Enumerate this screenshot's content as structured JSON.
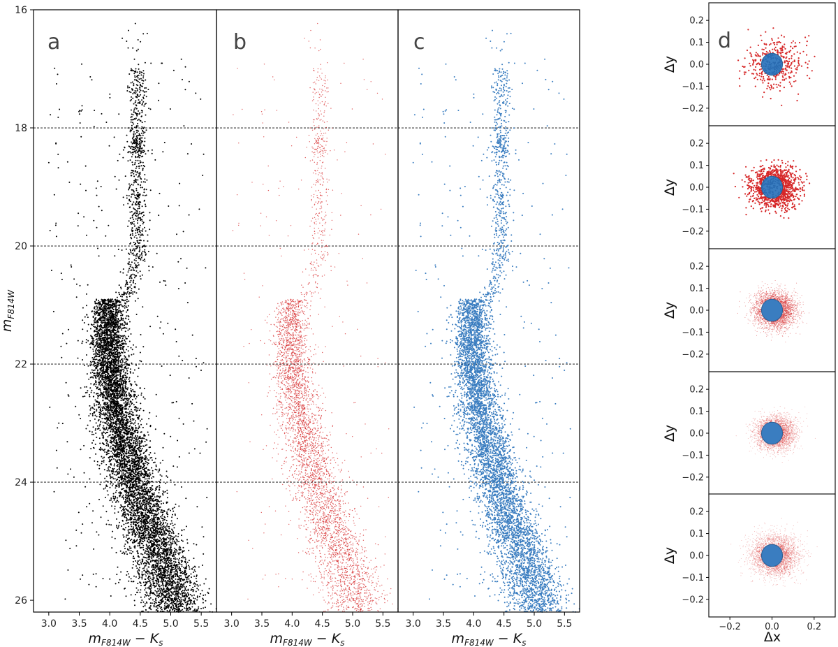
{
  "chart_data": [
    {
      "type": "scatter",
      "letter": "a",
      "xlabel": "m_F814W − K_s",
      "ylabel": "m_F814W",
      "xlim": [
        2.75,
        5.75
      ],
      "ylim": [
        26.2,
        16
      ],
      "xticks": [
        "3.0",
        "3.5",
        "4.0",
        "4.5",
        "5.0",
        "5.5"
      ],
      "yticks": [
        "16",
        "18",
        "20",
        "22",
        "24",
        "26"
      ],
      "hlines": [
        18,
        20,
        22,
        24
      ],
      "color": "#000000",
      "series": [
        {
          "region": "main_sequence",
          "points": [
            [
              3.98,
              21.2
            ],
            [
              4.0,
              21.8
            ],
            [
              4.05,
              22.4
            ],
            [
              4.15,
              23.0
            ],
            [
              4.3,
              23.6
            ],
            [
              4.45,
              24.2
            ],
            [
              4.6,
              24.8
            ],
            [
              4.8,
              25.4
            ],
            [
              5.0,
              25.9
            ]
          ],
          "width": 0.28
        },
        {
          "region": "upper_branch",
          "points": [
            [
              4.4,
              17.2
            ],
            [
              4.45,
              18.0
            ],
            [
              4.42,
              18.4
            ],
            [
              4.45,
              19.2
            ],
            [
              4.42,
              19.8
            ],
            [
              4.35,
              20.4
            ],
            [
              4.2,
              21.0
            ]
          ],
          "width": 0.16
        }
      ]
    },
    {
      "type": "scatter",
      "letter": "b",
      "xlabel": "m_F814W − K_s",
      "xlim": [
        2.75,
        5.75
      ],
      "ylim": [
        26.2,
        16
      ],
      "xticks": [
        "3.0",
        "3.5",
        "4.0",
        "4.5",
        "5.0",
        "5.5"
      ],
      "hlines": [
        18,
        20,
        22,
        24
      ],
      "color": "#d62728"
    },
    {
      "type": "scatter",
      "letter": "c",
      "xlabel": "m_F814W − K_s",
      "xlim": [
        2.75,
        5.75
      ],
      "ylim": [
        26.2,
        16
      ],
      "xticks": [
        "3.0",
        "3.5",
        "4.0",
        "4.5",
        "5.0",
        "5.5"
      ],
      "hlines": [
        18,
        20,
        22,
        24
      ],
      "color": "#3a7dc0"
    },
    {
      "type": "scatter",
      "letter": "d",
      "xlabel": "Δx",
      "ylabel": "Δy",
      "xlim": [
        -0.3,
        0.3
      ],
      "ylim": [
        -0.28,
        0.28
      ],
      "xticks": [
        "−0.2",
        "0.0",
        "0.2"
      ],
      "yticks": [
        "0.2",
        "0.1",
        "0.0",
        "−0.1",
        "−0.2"
      ],
      "selection_radius": 0.05,
      "colors": {
        "outer": "#d62728",
        "inner": "#3a7dc0"
      },
      "subpanels": [
        {
          "mag_bin": [
            16,
            18
          ],
          "n_points": 420,
          "spread": 0.11
        },
        {
          "mag_bin": [
            18,
            20
          ],
          "n_points": 1400,
          "spread": 0.09
        },
        {
          "mag_bin": [
            20,
            22
          ],
          "n_points": 6000,
          "spread": 0.08
        },
        {
          "mag_bin": [
            22,
            24
          ],
          "n_points": 9000,
          "spread": 0.075
        },
        {
          "mag_bin": [
            24,
            26
          ],
          "n_points": 12000,
          "spread": 0.09
        }
      ]
    }
  ]
}
